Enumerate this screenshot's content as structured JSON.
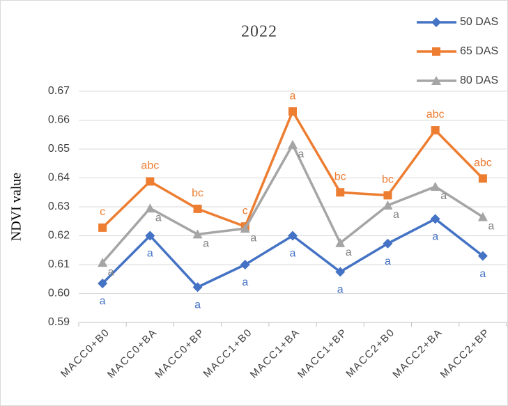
{
  "chart_data": {
    "type": "line",
    "title": "2022",
    "y_label": "NDVI value",
    "categories": [
      "MACC0+B0",
      "MACC0+BA",
      "MACC0+BP",
      "MACC1+B0",
      "MACC1+BA",
      "MACC1+BP",
      "MACC2+B0",
      "MACC2+BA",
      "MACC2+BP"
    ],
    "series": [
      {
        "name": "50 DAS",
        "color": "#4472c4",
        "marker": "diamond",
        "values": [
          0.6035,
          0.62,
          0.6022,
          0.61,
          0.62,
          0.6075,
          0.6173,
          0.6258,
          0.613
        ],
        "letters": [
          "a",
          "a",
          "a",
          "a",
          "a",
          "a",
          "a",
          "a",
          "a"
        ]
      },
      {
        "name": "65 DAS",
        "color": "#ed7d31",
        "marker": "square",
        "values": [
          0.6228,
          0.6388,
          0.6293,
          0.6232,
          0.663,
          0.635,
          0.634,
          0.6565,
          0.6398
        ],
        "letters": [
          "c",
          "abc",
          "bc",
          "c",
          "a",
          "bc",
          "bc",
          "abc",
          "abc"
        ]
      },
      {
        "name": "80 DAS",
        "color": "#a5a5a5",
        "marker": "triangle",
        "values": [
          0.6107,
          0.6295,
          0.6205,
          0.6225,
          0.6515,
          0.6175,
          0.6305,
          0.637,
          0.6265
        ],
        "letters": [
          "a",
          "a",
          "a",
          "a",
          "a",
          "a",
          "a",
          "a",
          "a"
        ]
      }
    ],
    "ylim": [
      0.59,
      0.67
    ],
    "yticks": [
      {
        "value": 0.59,
        "label": "0.59"
      },
      {
        "value": 0.6,
        "label": "0.60"
      },
      {
        "value": 0.61,
        "label": "0.61"
      },
      {
        "value": 0.62,
        "label": "0.62"
      },
      {
        "value": 0.63,
        "label": "0.63"
      },
      {
        "value": 0.64,
        "label": "0.64"
      },
      {
        "value": 0.65,
        "label": "0.65"
      },
      {
        "value": 0.66,
        "label": "0.66"
      },
      {
        "value": 0.67,
        "label": "0.67"
      }
    ],
    "grid": true,
    "legend": "top-right"
  }
}
